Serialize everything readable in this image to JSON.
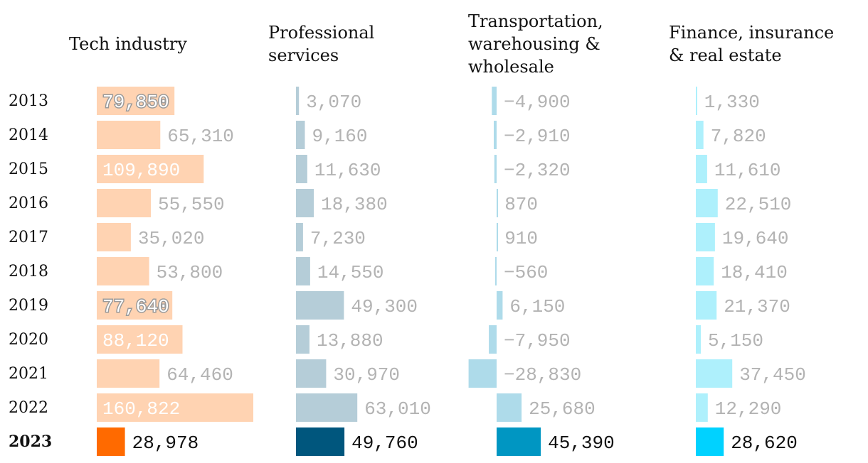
{
  "chart_data": {
    "type": "bar",
    "years": [
      "2013",
      "2014",
      "2015",
      "2016",
      "2017",
      "2018",
      "2019",
      "2020",
      "2021",
      "2022",
      "2023"
    ],
    "highlight_year": "2023",
    "series": [
      {
        "name": "Tech industry",
        "title_lines": [
          "Tech industry"
        ],
        "labels": [
          "79,850",
          "65,310",
          "109,890",
          "55,550",
          "35,020",
          "53,800",
          "77,640",
          "88,120",
          "64,460",
          "160,822",
          "28,978"
        ],
        "values": [
          79850,
          65310,
          109890,
          55550,
          35020,
          53800,
          77640,
          88120,
          64460,
          160822,
          28978
        ],
        "color": "#ffd3b2",
        "highlight_color": "#ff6a00"
      },
      {
        "name": "Professional services",
        "title_lines": [
          "Professional",
          "services"
        ],
        "labels": [
          "3,070",
          "9,160",
          "11,630",
          "18,380",
          "7,230",
          "14,550",
          "49,300",
          "13,880",
          "30,970",
          "63,010",
          "49,760"
        ],
        "values": [
          3070,
          9160,
          11630,
          18380,
          7230,
          14550,
          49300,
          13880,
          30970,
          63010,
          49760
        ],
        "color": "#b5cdd8",
        "highlight_color": "#00567d"
      },
      {
        "name": "Transportation, warehousing & wholesale",
        "title_lines": [
          "Transportation,",
          "warehousing &",
          "wholesale"
        ],
        "labels": [
          "−4,900",
          "−2,910",
          "−2,320",
          "870",
          "910",
          "−560",
          "6,150",
          "−7,950",
          "−28,830",
          "25,680",
          "45,390"
        ],
        "values": [
          -4900,
          -2910,
          -2320,
          870,
          910,
          -560,
          6150,
          -7950,
          -28830,
          25680,
          45390
        ],
        "color": "#aedbea",
        "highlight_color": "#0096c2"
      },
      {
        "name": "Finance, insurance & real estate",
        "title_lines": [
          "Finance, insurance",
          "& real estate"
        ],
        "labels": [
          "1,330",
          "7,820",
          "11,610",
          "22,510",
          "19,640",
          "18,410",
          "21,370",
          "5,150",
          "37,450",
          "12,290",
          "28,620"
        ],
        "values": [
          1330,
          7820,
          11610,
          22510,
          19640,
          18410,
          21370,
          5150,
          37450,
          12290,
          28620
        ],
        "color": "#aef0fc",
        "highlight_color": "#00d2ff"
      }
    ]
  }
}
